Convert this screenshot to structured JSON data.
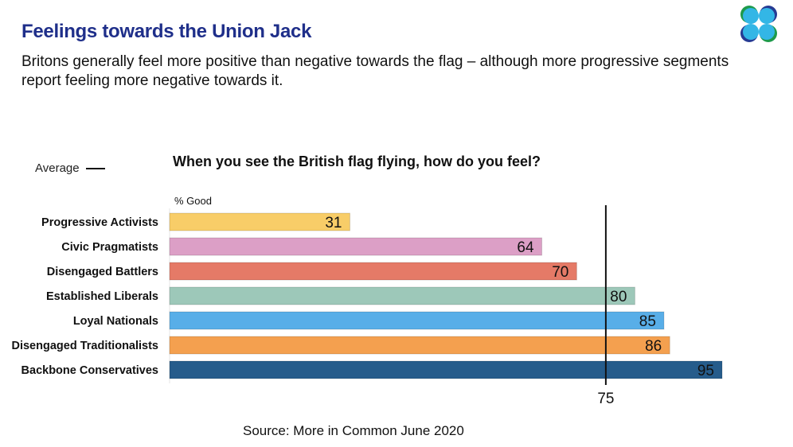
{
  "title": "Feelings towards the Union Jack",
  "subtitle": "Britons generally feel more positive than negative towards the flag – although more progressive segments report feeling more negative towards it.",
  "logo_icon": "more-in-common-logo",
  "legend": {
    "label": "Average"
  },
  "source": "Source: More in Common June 2020",
  "chart_data": {
    "type": "bar",
    "orientation": "horizontal",
    "title": "When you see the British flag flying, how do you feel?",
    "unit_label": "% Good",
    "categories": [
      "Progressive Activists",
      "Civic Pragmatists",
      "Disengaged Battlers",
      "Established Liberals",
      "Loyal Nationals",
      "Disengaged Traditionalists",
      "Backbone Conservatives"
    ],
    "values": [
      31,
      64,
      70,
      80,
      85,
      86,
      95
    ],
    "colors": [
      "#f8cd68",
      "#dc9fc6",
      "#e57a67",
      "#9dc8b9",
      "#58aee8",
      "#f4a04f",
      "#265c8b"
    ],
    "average": {
      "value": 75,
      "label": "75"
    },
    "xlim": [
      0,
      95
    ],
    "grid": false
  }
}
